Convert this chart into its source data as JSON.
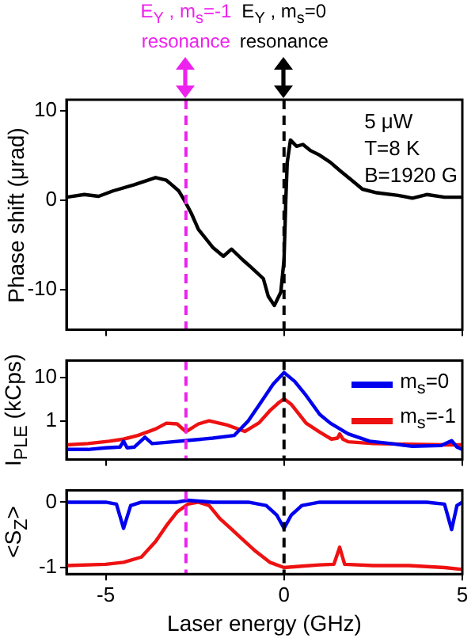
{
  "chart_data": [
    {
      "type": "line",
      "ylabel": "Phase shift (μrad)",
      "xlim": [
        -6.1,
        5
      ],
      "xticks": [
        -5,
        0,
        5
      ],
      "ylim": [
        -14.5,
        11.2
      ],
      "yticks": [
        -10,
        0,
        10
      ],
      "tick_labels": "y",
      "marker": "none",
      "annotations": [
        "5 μW",
        "T=8 K",
        "B=1920 G",
        "E$_{Y}$ , m$_{s}$=-1 resonance",
        "E$_{Y}$ , m$_{s}$=0 resonance"
      ],
      "ref_lines": [
        {
          "axis": "x",
          "value": -2.75,
          "color": "#ee22ee",
          "line_style": "dashed"
        },
        {
          "axis": "x",
          "value": 0,
          "color": "#000000",
          "line_style": "dashed"
        }
      ],
      "series": [
        {
          "color": "#000000",
          "x": [
            -6.1,
            -5.6,
            -5.2,
            -4.8,
            -4.2,
            -3.6,
            -3.3,
            -3.15,
            -2.95,
            -2.8,
            -2.6,
            -2.4,
            -2.0,
            -1.7,
            -1.47,
            -1.16,
            -0.93,
            -0.58,
            -0.44,
            -0.27,
            -0.09,
            0,
            0.05,
            0.09,
            0.18,
            0.35,
            0.53,
            0.75,
            1.0,
            1.3,
            1.56,
            1.9,
            2.2,
            2.6,
            3.2,
            3.6,
            4.0,
            4.5,
            5.0
          ],
          "values": [
            0.3,
            0.6,
            0.4,
            1.0,
            1.7,
            2.5,
            2.2,
            1.7,
            1.0,
            0,
            -1.5,
            -3.3,
            -5.3,
            -6.3,
            -5.5,
            -6.7,
            -7.5,
            -8.8,
            -10.8,
            -11.8,
            -10.3,
            -6.7,
            0,
            4.2,
            6.7,
            6.0,
            6.2,
            5.5,
            5.0,
            4.2,
            3.3,
            2.2,
            1.2,
            0.8,
            0.5,
            0.2,
            0.6,
            0.3,
            0.3
          ]
        }
      ]
    },
    {
      "type": "line",
      "ylabel": "I$_{PLE}$ (kCps)",
      "xlim": [
        -6.1,
        5
      ],
      "xticks": [
        -5,
        0,
        5
      ],
      "ylim": [
        0.13,
        24
      ],
      "yticks": [
        1,
        10
      ],
      "log": "y",
      "tick_labels": "y",
      "marker": "none",
      "legend": "top right",
      "ref_lines": [
        {
          "axis": "x",
          "value": -2.75,
          "color": "#ee22ee",
          "line_style": "dashed"
        },
        {
          "axis": "x",
          "value": 0,
          "color": "#000000",
          "line_style": "dashed"
        }
      ],
      "series": [
        {
          "name": "m$_{s}$=0",
          "color": "#0000ee",
          "x": [
            -6.1,
            -5.5,
            -5,
            -4.6,
            -4.5,
            -4.4,
            -4.2,
            -3.9,
            -3.7,
            -3.3,
            -2.6,
            -2,
            -1.4,
            -1,
            -0.67,
            -0.3,
            0,
            0.3,
            0.62,
            1,
            1.3,
            1.8,
            2.4,
            3,
            3.6,
            4.4,
            4.7,
            4.85,
            5
          ],
          "values": [
            0.22,
            0.22,
            0.24,
            0.25,
            0.34,
            0.24,
            0.25,
            0.42,
            0.3,
            0.32,
            0.36,
            0.4,
            0.46,
            1.0,
            2.5,
            7,
            12.8,
            8,
            3.8,
            1.4,
            0.88,
            0.5,
            0.34,
            0.3,
            0.26,
            0.27,
            0.35,
            0.25,
            0.22
          ]
        },
        {
          "name": "m$_{s}$=-1",
          "color": "#ee1111",
          "x": [
            -6.1,
            -5.5,
            -4.9,
            -4.5,
            -4.1,
            -3.6,
            -3.3,
            -3,
            -2.75,
            -2.4,
            -2.1,
            -1.6,
            -1.1,
            -0.7,
            -0.4,
            -0.15,
            0,
            0.2,
            0.62,
            1,
            1.33,
            1.5,
            1.56,
            1.65,
            1.8,
            2.5,
            3.5,
            4.5,
            5
          ],
          "values": [
            0.28,
            0.3,
            0.34,
            0.38,
            0.46,
            0.65,
            0.88,
            0.85,
            0.56,
            0.85,
            1.0,
            0.8,
            0.57,
            0.9,
            1.7,
            2.6,
            3.2,
            2.4,
            0.88,
            0.55,
            0.38,
            0.4,
            0.5,
            0.38,
            0.33,
            0.3,
            0.29,
            0.28,
            0.28
          ]
        }
      ]
    },
    {
      "type": "line",
      "xlabel": "Laser energy (GHz)",
      "ylabel": "<S$_{Z}$>",
      "xlim": [
        -6.1,
        5
      ],
      "xticks": [
        -5,
        0,
        5
      ],
      "ylim": [
        -1.1,
        0.18
      ],
      "yticks": [
        -1,
        0
      ],
      "marker": "none",
      "ref_lines": [
        {
          "axis": "x",
          "value": -2.75,
          "color": "#ee22ee",
          "line_style": "dashed"
        },
        {
          "axis": "x",
          "value": 0,
          "color": "#000000",
          "line_style": "dashed"
        }
      ],
      "series": [
        {
          "color": "#0000ee",
          "x": [
            -6.1,
            -5,
            -4.7,
            -4.5,
            -4.3,
            -4,
            -3,
            -2.7,
            -2,
            -1,
            -0.5,
            -0.2,
            0,
            0.2,
            0.5,
            1,
            2,
            3,
            4,
            4.5,
            4.7,
            4.85,
            5
          ],
          "values": [
            0,
            0,
            -0.03,
            -0.4,
            -0.05,
            0,
            0,
            0.03,
            0,
            0,
            -0.05,
            -0.2,
            -0.4,
            -0.2,
            -0.05,
            0,
            0,
            0,
            0,
            -0.03,
            -0.42,
            -0.05,
            0
          ]
        },
        {
          "color": "#ee1111",
          "x": [
            -6.1,
            -5,
            -4.5,
            -4,
            -3.6,
            -3.3,
            -3,
            -2.7,
            -2.4,
            -2.1,
            -1.8,
            -1.5,
            -1.2,
            -0.8,
            -0.4,
            0,
            0.5,
            1,
            1.4,
            1.56,
            1.7,
            2.5,
            3.5,
            4.5,
            5
          ],
          "values": [
            -0.97,
            -0.95,
            -0.92,
            -0.84,
            -0.6,
            -0.36,
            -0.15,
            -0.03,
            0,
            -0.05,
            -0.25,
            -0.4,
            -0.55,
            -0.75,
            -0.92,
            -1.0,
            -0.98,
            -0.96,
            -0.95,
            -0.69,
            -0.95,
            -0.97,
            -0.97,
            -1.0,
            -1.03
          ]
        }
      ]
    }
  ]
}
